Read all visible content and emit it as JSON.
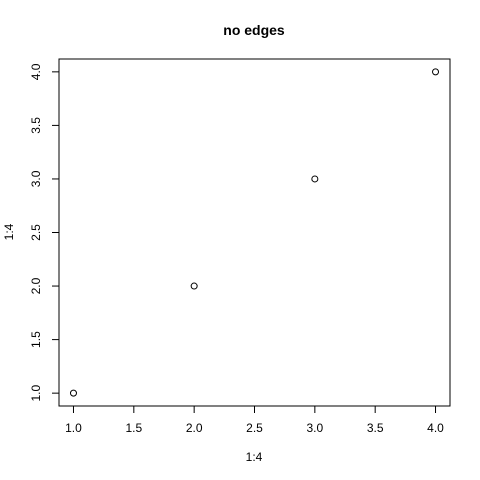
{
  "chart_data": {
    "type": "scatter",
    "title": "no edges",
    "xlabel": "1:4",
    "ylabel": "1:4",
    "xlim": [
      0.88,
      4.12
    ],
    "ylim": [
      0.88,
      4.12
    ],
    "x_ticks": [
      1.0,
      1.5,
      2.0,
      2.5,
      3.0,
      3.5,
      4.0
    ],
    "x_tick_labels": [
      "1.0",
      "1.5",
      "2.0",
      "2.5",
      "3.0",
      "3.5",
      "4.0"
    ],
    "y_ticks": [
      1.0,
      1.5,
      2.0,
      2.5,
      3.0,
      3.5,
      4.0
    ],
    "y_tick_labels": [
      "1.0",
      "1.5",
      "2.0",
      "2.5",
      "3.0",
      "3.5",
      "4.0"
    ],
    "grid": false,
    "marker": "open-circle",
    "series": [
      {
        "x": [
          1,
          2,
          3,
          4
        ],
        "y": [
          1,
          2,
          3,
          4
        ]
      }
    ]
  }
}
